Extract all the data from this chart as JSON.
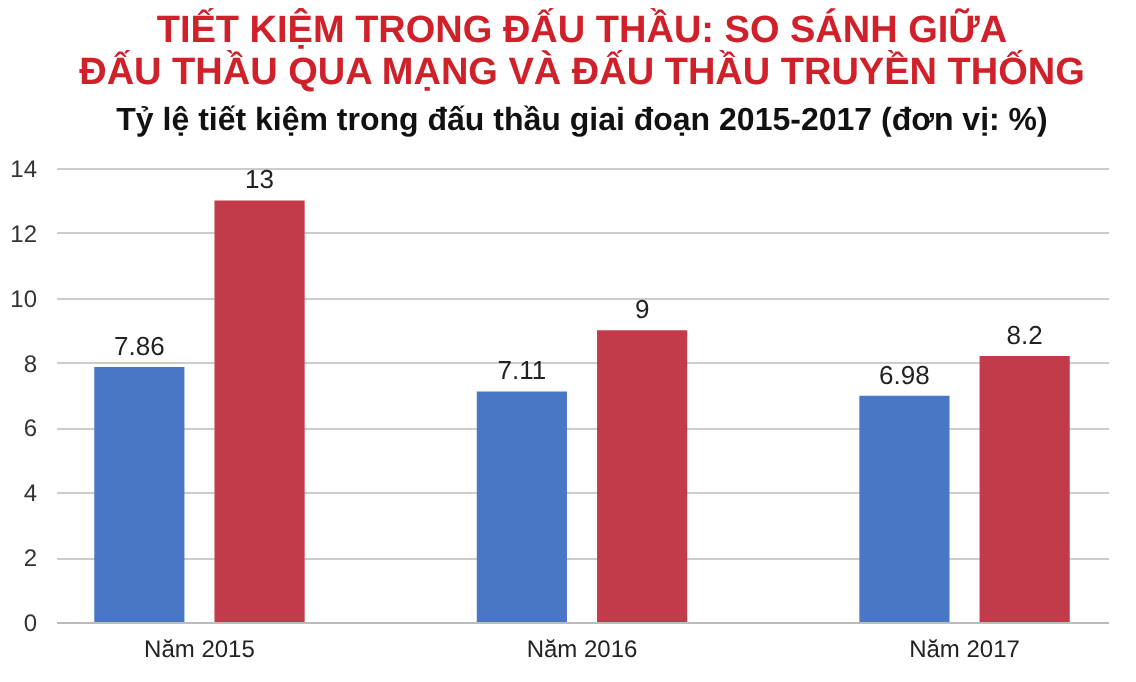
{
  "chart_data": {
    "type": "bar",
    "title": [
      "TIẾT KIỆM TRONG ĐẤU THẦU: SO SÁNH GIỮA",
      "ĐẤU THẦU QUA MẠNG VÀ ĐẤU THẦU TRUYỀN THỐNG"
    ],
    "subtitle": "Tỷ lệ tiết kiệm trong đấu thầu giai đoạn 2015-2017 (đơn vị: %)",
    "categories": [
      "Năm 2015",
      "Năm 2016",
      "Năm 2017"
    ],
    "series": [
      {
        "color": "#4a76c6",
        "values": [
          7.86,
          7.11,
          6.98
        ]
      },
      {
        "color": "#c23b4b",
        "values": [
          13,
          9,
          8.2
        ]
      }
    ],
    "ylim": [
      0,
      14
    ],
    "yticks": [
      0,
      2,
      4,
      6,
      8,
      10,
      12,
      14
    ],
    "grid": "y",
    "data_labels": true
  }
}
